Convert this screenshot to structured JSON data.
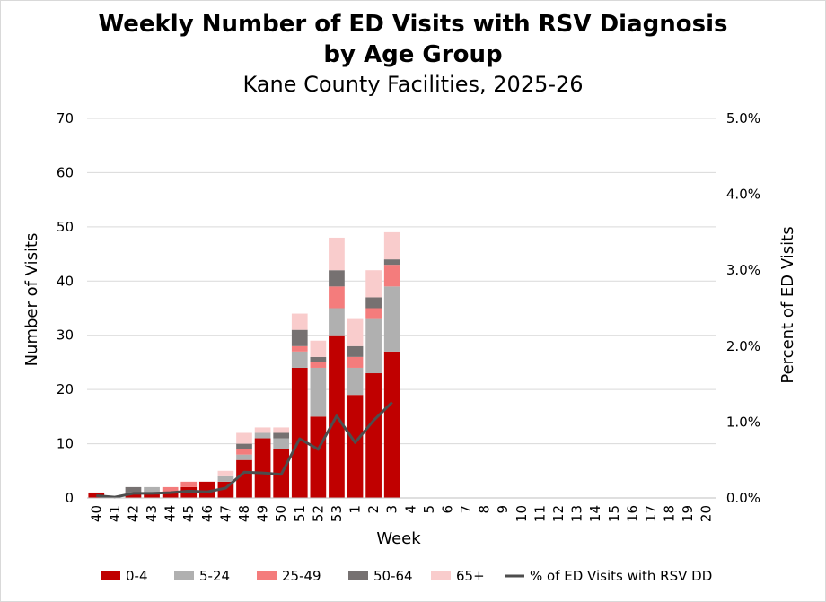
{
  "chart_data": {
    "type": "bar",
    "stacked": true,
    "title": "Weekly Number of ED Visits with RSV Diagnosis",
    "title_line2": "by Age Group",
    "subtitle": "Kane County Facilities, 2025-26",
    "xlabel": "Week",
    "ylabel": "Number of Visits",
    "y2label": "Percent of ED Visits",
    "ylim": [
      0,
      70
    ],
    "yticks": [
      "0",
      "10",
      "20",
      "30",
      "40",
      "50",
      "60",
      "70"
    ],
    "y2lim": [
      0,
      5.0
    ],
    "y2ticks": [
      "0.0%",
      "1.0%",
      "2.0%",
      "3.0%",
      "4.0%",
      "5.0%"
    ],
    "categories": [
      "40",
      "41",
      "42",
      "43",
      "44",
      "45",
      "46",
      "47",
      "48",
      "49",
      "50",
      "51",
      "52",
      "53",
      "1",
      "2",
      "3",
      "4",
      "5",
      "6",
      "7",
      "8",
      "9",
      "10",
      "11",
      "12",
      "13",
      "14",
      "15",
      "16",
      "17",
      "18",
      "19",
      "20"
    ],
    "series": [
      {
        "name": "0-4",
        "color": "#c00000",
        "values": [
          1,
          0,
          1,
          1,
          1,
          2,
          3,
          3,
          7,
          11,
          9,
          24,
          15,
          30,
          19,
          23,
          27,
          null,
          null,
          null,
          null,
          null,
          null,
          null,
          null,
          null,
          null,
          null,
          null,
          null,
          null,
          null,
          null,
          null
        ]
      },
      {
        "name": "5-24",
        "color": "#b0b0b0",
        "values": [
          0,
          0,
          0,
          1,
          0,
          0,
          0,
          1,
          1,
          1,
          2,
          3,
          9,
          5,
          5,
          10,
          12,
          null,
          null,
          null,
          null,
          null,
          null,
          null,
          null,
          null,
          null,
          null,
          null,
          null,
          null,
          null,
          null,
          null
        ]
      },
      {
        "name": "25-49",
        "color": "#f47c7c",
        "values": [
          0,
          0,
          0,
          0,
          1,
          1,
          0,
          0,
          1,
          0,
          0,
          1,
          1,
          4,
          2,
          2,
          4,
          null,
          null,
          null,
          null,
          null,
          null,
          null,
          null,
          null,
          null,
          null,
          null,
          null,
          null,
          null,
          null,
          null
        ]
      },
      {
        "name": "50-64",
        "color": "#767171",
        "values": [
          0,
          0,
          1,
          0,
          0,
          0,
          0,
          0,
          1,
          0,
          1,
          3,
          1,
          3,
          2,
          2,
          1,
          null,
          null,
          null,
          null,
          null,
          null,
          null,
          null,
          null,
          null,
          null,
          null,
          null,
          null,
          null,
          null,
          null
        ]
      },
      {
        "name": "65+",
        "color": "#f9cccc",
        "values": [
          0,
          0,
          0,
          0,
          0,
          0,
          0,
          1,
          2,
          1,
          1,
          3,
          3,
          6,
          5,
          5,
          5,
          null,
          null,
          null,
          null,
          null,
          null,
          null,
          null,
          null,
          null,
          null,
          null,
          null,
          null,
          null,
          null,
          null
        ]
      }
    ],
    "line_series": {
      "name": "% of ED Visits with RSV DD",
      "color": "#4d4d4d",
      "axis": "secondary",
      "values": [
        0.03,
        0.01,
        0.06,
        0.06,
        0.07,
        0.09,
        0.08,
        0.13,
        0.34,
        0.33,
        0.31,
        0.78,
        0.64,
        1.08,
        0.73,
        1.02,
        1.26,
        null,
        null,
        null,
        null,
        null,
        null,
        null,
        null,
        null,
        null,
        null,
        null,
        null,
        null,
        null,
        null,
        null
      ]
    },
    "legend": "bottom"
  }
}
